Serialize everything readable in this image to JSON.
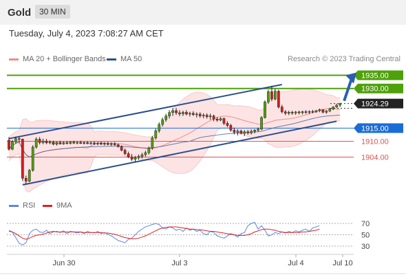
{
  "header": {
    "title": "Gold",
    "timeframe": "30 MIN"
  },
  "datetime": "Tuesday, July 4, 2023 7:08:27 AM CET",
  "legend": {
    "bb_label": "MA 20 + Bollinger Bands",
    "ma50_label": "MA 50",
    "research": "Research © 2023 Trading Central",
    "rsi_label": "RSI",
    "ma9_label": "9MA"
  },
  "colors": {
    "bb": "#f28b8b",
    "ma50": "#2a4f8f",
    "green": "#4ea10a",
    "blue": "#1a6dd6",
    "red": "#e05050",
    "dark": "#333333",
    "rsi": "#5b86e5",
    "ma9": "#e02020"
  },
  "chart_data": [
    {
      "type": "candlestick",
      "title": "Gold 30 MIN",
      "levels": [
        {
          "label": "1935.00",
          "value": 1935.0,
          "kind": "resistance"
        },
        {
          "label": "1930.00",
          "value": 1930.0,
          "kind": "resistance"
        },
        {
          "label": "1924.29",
          "value": 1924.29,
          "kind": "last"
        },
        {
          "label": "1915.00",
          "value": 1915.0,
          "kind": "pivot"
        },
        {
          "label": "1910.00",
          "value": 1910.0,
          "kind": "support"
        },
        {
          "label": "1904.00",
          "value": 1904.0,
          "kind": "support"
        }
      ],
      "ohlc": [
        [
          1910.4,
          1911.6,
          1906.5,
          1907.0
        ],
        [
          1907.0,
          1910.5,
          1906.6,
          1909.8
        ],
        [
          1909.8,
          1911.8,
          1909.2,
          1911.0
        ],
        [
          1911.0,
          1911.8,
          1909.5,
          1910.8
        ],
        [
          1910.8,
          1911.0,
          1895.0,
          1896.0
        ],
        [
          1896.0,
          1897.0,
          1893.8,
          1894.9
        ],
        [
          1894.9,
          1899.5,
          1894.5,
          1899.0
        ],
        [
          1899.0,
          1908.5,
          1898.5,
          1907.8
        ],
        [
          1907.8,
          1911.5,
          1907.2,
          1910.8
        ],
        [
          1910.8,
          1911.6,
          1908.8,
          1909.5
        ],
        [
          1909.5,
          1911.0,
          1908.9,
          1910.1
        ],
        [
          1910.1,
          1910.9,
          1908.9,
          1909.4
        ],
        [
          1909.4,
          1910.3,
          1908.9,
          1909.7
        ],
        [
          1909.7,
          1910.2,
          1908.5,
          1908.9
        ],
        [
          1908.9,
          1909.9,
          1908.4,
          1909.6
        ],
        [
          1909.6,
          1910.2,
          1908.8,
          1909.0
        ],
        [
          1909.0,
          1910.0,
          1908.7,
          1909.5
        ],
        [
          1909.5,
          1910.1,
          1908.8,
          1909.2
        ],
        [
          1909.2,
          1910.0,
          1908.8,
          1909.7
        ],
        [
          1909.7,
          1910.2,
          1909.0,
          1909.3
        ],
        [
          1909.3,
          1910.0,
          1908.9,
          1909.6
        ],
        [
          1909.6,
          1910.2,
          1909.0,
          1909.2
        ],
        [
          1909.2,
          1910.0,
          1908.8,
          1909.5
        ],
        [
          1909.5,
          1910.1,
          1908.9,
          1909.1
        ],
        [
          1909.1,
          1909.9,
          1908.7,
          1909.4
        ],
        [
          1909.4,
          1910.0,
          1908.6,
          1909.0
        ],
        [
          1909.0,
          1909.8,
          1908.5,
          1909.3
        ],
        [
          1909.3,
          1909.9,
          1908.6,
          1908.9
        ],
        [
          1908.9,
          1909.7,
          1908.4,
          1909.2
        ],
        [
          1909.2,
          1909.8,
          1908.5,
          1908.8
        ],
        [
          1908.8,
          1909.6,
          1908.2,
          1909.1
        ],
        [
          1909.1,
          1909.7,
          1908.3,
          1908.7
        ],
        [
          1908.7,
          1909.2,
          1907.6,
          1908.0
        ],
        [
          1908.0,
          1908.5,
          1906.2,
          1906.6
        ],
        [
          1906.6,
          1907.3,
          1904.8,
          1905.3
        ],
        [
          1905.3,
          1906.1,
          1903.6,
          1904.1
        ],
        [
          1904.1,
          1905.2,
          1902.5,
          1903.2
        ],
        [
          1903.2,
          1904.5,
          1902.2,
          1903.8
        ],
        [
          1903.8,
          1905.0,
          1903.0,
          1904.3
        ],
        [
          1904.3,
          1905.6,
          1903.5,
          1904.9
        ],
        [
          1904.9,
          1906.4,
          1904.2,
          1905.7
        ],
        [
          1905.7,
          1908.0,
          1905.0,
          1907.4
        ],
        [
          1907.4,
          1912.0,
          1906.8,
          1911.3
        ],
        [
          1911.3,
          1914.8,
          1910.6,
          1914.0
        ],
        [
          1914.0,
          1917.2,
          1913.2,
          1916.4
        ],
        [
          1916.4,
          1919.0,
          1915.6,
          1918.2
        ],
        [
          1918.2,
          1920.4,
          1917.4,
          1919.6
        ],
        [
          1919.6,
          1921.8,
          1918.6,
          1920.9
        ],
        [
          1920.9,
          1922.6,
          1919.6,
          1921.6
        ],
        [
          1921.6,
          1922.6,
          1920.0,
          1920.8
        ],
        [
          1920.8,
          1921.8,
          1919.5,
          1920.4
        ],
        [
          1920.4,
          1921.6,
          1919.6,
          1921.0
        ],
        [
          1921.0,
          1921.8,
          1919.8,
          1920.3
        ],
        [
          1920.3,
          1921.2,
          1919.4,
          1920.6
        ],
        [
          1920.6,
          1921.4,
          1919.6,
          1920.1
        ],
        [
          1920.1,
          1921.0,
          1919.0,
          1920.3
        ],
        [
          1920.3,
          1921.0,
          1918.9,
          1919.6
        ],
        [
          1919.6,
          1920.6,
          1918.7,
          1919.9
        ],
        [
          1919.9,
          1920.6,
          1918.6,
          1919.3
        ],
        [
          1919.3,
          1920.5,
          1918.2,
          1919.6
        ],
        [
          1919.6,
          1920.1,
          1917.6,
          1918.4
        ],
        [
          1918.4,
          1919.2,
          1917.4,
          1918.0
        ],
        [
          1918.0,
          1919.1,
          1917.6,
          1918.6
        ],
        [
          1918.6,
          1919.0,
          1916.2,
          1916.8
        ],
        [
          1916.8,
          1917.6,
          1915.4,
          1916.0
        ],
        [
          1916.0,
          1916.6,
          1913.6,
          1914.2
        ],
        [
          1914.2,
          1915.2,
          1912.6,
          1913.4
        ],
        [
          1913.4,
          1914.6,
          1912.2,
          1913.9
        ],
        [
          1913.9,
          1914.4,
          1912.6,
          1913.0
        ],
        [
          1913.0,
          1914.2,
          1912.0,
          1913.6
        ],
        [
          1913.6,
          1914.3,
          1912.5,
          1913.2
        ],
        [
          1913.2,
          1914.5,
          1912.6,
          1913.8
        ],
        [
          1913.8,
          1914.6,
          1913.0,
          1914.2
        ],
        [
          1914.2,
          1915.2,
          1913.6,
          1914.6
        ],
        [
          1914.6,
          1919.5,
          1914.2,
          1919.0
        ],
        [
          1919.0,
          1925.5,
          1918.6,
          1924.9
        ],
        [
          1924.9,
          1929.5,
          1924.2,
          1928.8
        ],
        [
          1928.8,
          1931.0,
          1925.2,
          1926.0
        ],
        [
          1926.0,
          1929.8,
          1925.5,
          1929.0
        ],
        [
          1929.0,
          1929.5,
          1922.4,
          1923.0
        ],
        [
          1923.0,
          1923.8,
          1920.6,
          1921.2
        ],
        [
          1921.2,
          1921.8,
          1919.9,
          1920.6
        ],
        [
          1920.6,
          1921.6,
          1919.9,
          1921.0
        ],
        [
          1921.0,
          1921.6,
          1920.0,
          1920.7
        ],
        [
          1920.7,
          1921.5,
          1920.0,
          1921.1
        ],
        [
          1921.1,
          1921.6,
          1920.2,
          1920.8
        ],
        [
          1920.8,
          1921.6,
          1920.2,
          1921.2
        ],
        [
          1921.2,
          1921.8,
          1920.4,
          1921.0
        ],
        [
          1921.0,
          1921.7,
          1920.3,
          1921.3
        ],
        [
          1921.3,
          1921.9,
          1920.6,
          1921.1
        ],
        [
          1921.1,
          1921.9,
          1920.8,
          1921.6
        ],
        [
          1921.6,
          1922.4,
          1921.0,
          1922.0
        ],
        [
          1922.0,
          1922.2,
          1920.6,
          1921.0
        ],
        [
          1921.0,
          1921.9,
          1920.4,
          1921.5
        ],
        [
          1921.5,
          1922.6,
          1921.0,
          1922.2
        ],
        [
          1922.2,
          1923.3,
          1921.8,
          1923.0
        ],
        [
          1923.0,
          1924.2,
          1922.6,
          1923.7
        ],
        [
          1923.7,
          1924.6,
          1923.0,
          1924.3
        ]
      ],
      "forecast_target": 1935.0,
      "x_ticks": [
        "Jun 30",
        "Jul 3",
        "Jul 4",
        "Jul 10"
      ]
    },
    {
      "type": "line",
      "title": "RSI",
      "y_ticks": [
        "70",
        "50",
        "30"
      ],
      "series": [
        {
          "name": "RSI",
          "values": [
            58,
            55,
            45,
            35,
            32,
            36,
            52,
            58,
            60,
            55,
            54,
            58,
            52,
            55,
            56,
            54,
            57,
            52,
            56,
            55,
            53,
            55,
            52,
            56,
            54,
            53,
            56,
            52,
            54,
            51,
            48,
            44,
            40,
            38,
            36,
            42,
            44,
            50,
            56,
            60,
            64,
            66,
            68,
            70,
            68,
            62,
            60,
            64,
            62,
            58,
            60,
            56,
            62,
            58,
            60,
            56,
            58,
            52,
            50,
            56,
            54,
            48,
            46,
            44,
            48,
            52,
            50,
            46,
            52,
            54,
            66,
            70,
            72,
            60,
            66,
            58,
            48,
            50,
            54,
            52,
            55,
            53,
            56,
            54,
            57,
            55,
            58,
            60,
            56,
            62,
            64,
            66
          ]
        },
        {
          "name": "9MA",
          "values": [
            56,
            55,
            52,
            48,
            44,
            42,
            44,
            47,
            49,
            50,
            51,
            53,
            55,
            56,
            55,
            55,
            55,
            55,
            55,
            55,
            55,
            55,
            54,
            54,
            54,
            54,
            54,
            54,
            53,
            53,
            52,
            51,
            49,
            47,
            45,
            44,
            43,
            43,
            44,
            46,
            48,
            51,
            54,
            57,
            60,
            62,
            63,
            64,
            64,
            64,
            63,
            62,
            61,
            60,
            60,
            59,
            59,
            58,
            57,
            56,
            56,
            55,
            54,
            53,
            52,
            51,
            50,
            49,
            49,
            49,
            50,
            52,
            55,
            57,
            59,
            60,
            60,
            59,
            58,
            56,
            55,
            54,
            54,
            54,
            54,
            54,
            55,
            55,
            56,
            57,
            58,
            60
          ]
        }
      ]
    }
  ]
}
